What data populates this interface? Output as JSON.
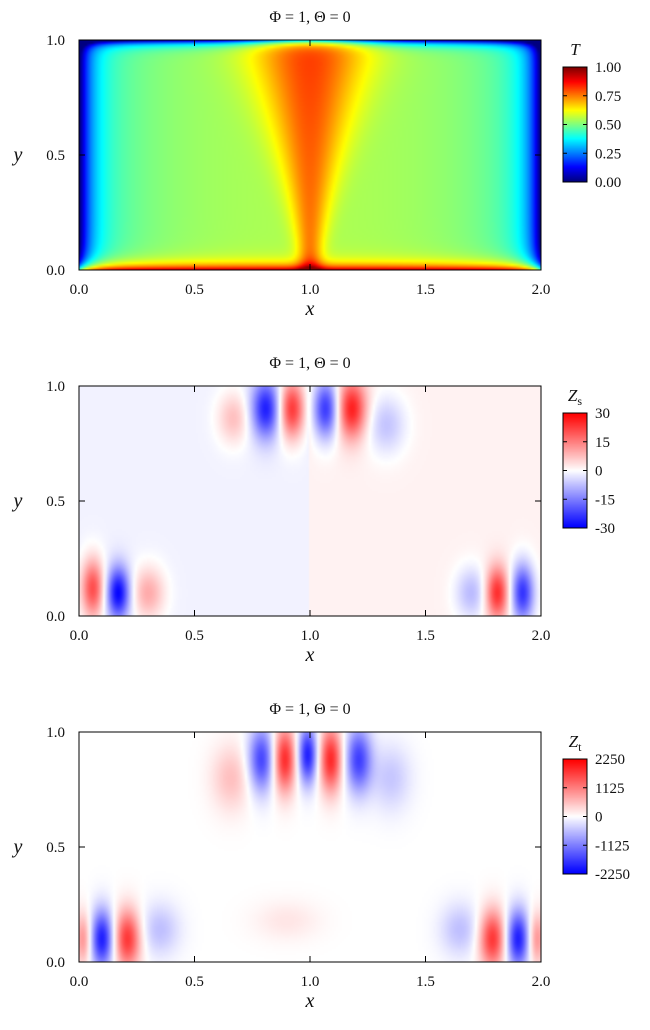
{
  "chart_data": [
    {
      "type": "heatmap",
      "title": "Φ = 1,   Θ = 0",
      "xlabel": "x",
      "ylabel": "y",
      "xlim": [
        0.0,
        2.0
      ],
      "ylim": [
        0.0,
        1.0
      ],
      "x_ticks": [
        "0.0",
        "0.5",
        "1.0",
        "1.5",
        "2.0"
      ],
      "y_ticks": [
        "0.0",
        "0.5",
        "1.0"
      ],
      "colorbar": {
        "label": "T",
        "sub": "",
        "range": [
          0.0,
          1.0
        ],
        "ticks": [
          "1.00",
          "0.75",
          "0.50",
          "0.25",
          "0.00"
        ],
        "colormap": "jet"
      },
      "field": "temperature"
    },
    {
      "type": "heatmap",
      "title": "Φ = 1,   Θ = 0",
      "xlabel": "x",
      "ylabel": "y",
      "xlim": [
        0.0,
        2.0
      ],
      "ylim": [
        0.0,
        1.0
      ],
      "x_ticks": [
        "0.0",
        "0.5",
        "1.0",
        "1.5",
        "2.0"
      ],
      "y_ticks": [
        "0.0",
        "0.5",
        "1.0"
      ],
      "colorbar": {
        "label": "Z",
        "sub": "s",
        "range": [
          -30,
          30
        ],
        "ticks": [
          "30",
          "15",
          "0",
          "-15",
          "-30"
        ],
        "colormap": "blue-white-red"
      },
      "field": "Zs"
    },
    {
      "type": "heatmap",
      "title": "Φ = 1,   Θ = 0",
      "xlabel": "x",
      "ylabel": "y",
      "xlim": [
        0.0,
        2.0
      ],
      "ylim": [
        0.0,
        1.0
      ],
      "x_ticks": [
        "0.0",
        "0.5",
        "1.0",
        "1.5",
        "2.0"
      ],
      "y_ticks": [
        "0.0",
        "0.5",
        "1.0"
      ],
      "colorbar": {
        "label": "Z",
        "sub": "t",
        "range": [
          -2250,
          2250
        ],
        "ticks": [
          "2250",
          "1125",
          "0",
          "-1125",
          "-2250"
        ],
        "colormap": "blue-white-red"
      },
      "field": "Zt"
    }
  ]
}
